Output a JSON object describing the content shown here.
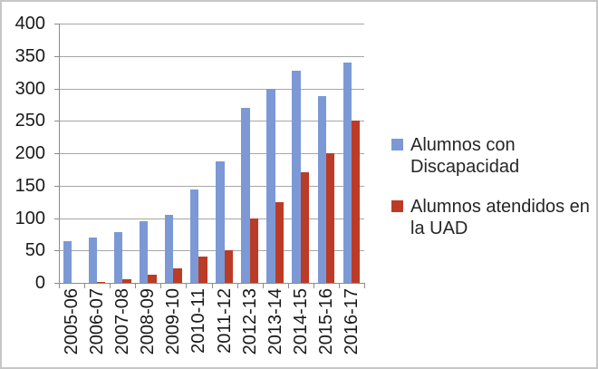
{
  "chart_data": {
    "type": "bar",
    "title": "",
    "xlabel": "",
    "ylabel": "",
    "categories": [
      "2005-06",
      "2006-07",
      "2007-08",
      "2008-09",
      "2009-10",
      "2010-11",
      "2011-12",
      "2012-13",
      "2013-14",
      "2014-15",
      "2015-16",
      "2016-17"
    ],
    "series": [
      {
        "name": "Alumnos con Discapacidad",
        "color": "#7c99d6",
        "values": [
          65,
          70,
          78,
          95,
          105,
          144,
          187,
          270,
          300,
          327,
          288,
          340
        ]
      },
      {
        "name": "Alumnos atendidos en la UAD",
        "color": "#bc3b26",
        "values": [
          0,
          2,
          6,
          12,
          23,
          40,
          51,
          100,
          125,
          170,
          200,
          250
        ]
      }
    ],
    "ylim": [
      0,
      400
    ],
    "ytick_step": 50,
    "ytick_labels": [
      "0",
      "50",
      "100",
      "150",
      "200",
      "250",
      "300",
      "350",
      "400"
    ],
    "grid": true,
    "legend_position": "right"
  },
  "colors": {
    "gridline": "#a6a6a6",
    "axis": "#8c8c8c",
    "tick_text": "#1a1a1a",
    "legend_text": "#262626",
    "border": "#c6c6c6",
    "background": "#ffffff"
  }
}
